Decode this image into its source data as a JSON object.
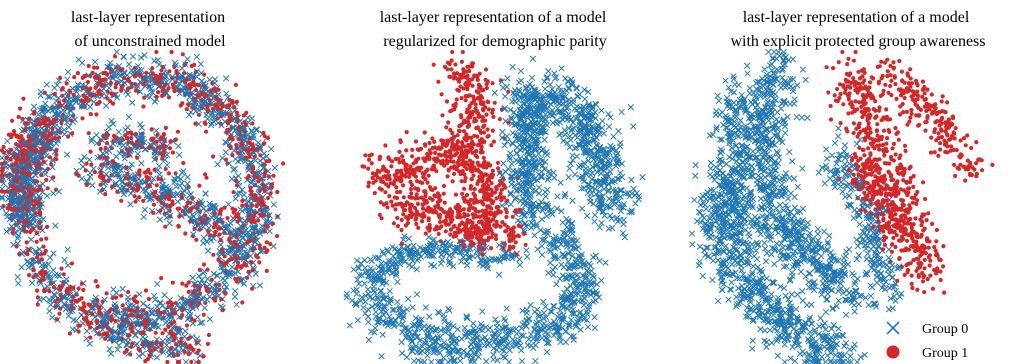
{
  "chart_data": [
    {
      "type": "scatter",
      "title": "last-layer representation\nof unconstrained model",
      "xlabel": "",
      "ylabel": "",
      "grid": false,
      "axes_visible": false,
      "description": "mixed ring / spiral; both groups interleaved",
      "series": [
        {
          "name": "Group 0",
          "marker": "x",
          "color": "#1f77b4",
          "approx_points": 1800
        },
        {
          "name": "Group 1",
          "marker": "o",
          "color": "#d62728",
          "approx_points": 1400
        }
      ]
    },
    {
      "type": "scatter",
      "title": "last-layer representation of a model\nregularized for demographic parity",
      "xlabel": "",
      "ylabel": "",
      "grid": false,
      "axes_visible": false,
      "description": "group 1 in left lobes, group 0 in outer arcs",
      "series": [
        {
          "name": "Group 0",
          "marker": "x",
          "color": "#1f77b4",
          "approx_points": 1800
        },
        {
          "name": "Group 1",
          "marker": "o",
          "color": "#d62728",
          "approx_points": 1000
        }
      ]
    },
    {
      "type": "scatter",
      "title": "last-layer representation of a model\nwith explicit protected group awareness",
      "xlabel": "",
      "ylabel": "",
      "grid": false,
      "axes_visible": false,
      "description": "three diagonal bands; groups separated",
      "legend_position": "bottom-right",
      "series": [
        {
          "name": "Group 0",
          "marker": "x",
          "color": "#1f77b4",
          "approx_points": 1800
        },
        {
          "name": "Group 1",
          "marker": "o",
          "color": "#d62728",
          "approx_points": 900
        }
      ]
    }
  ],
  "legend": {
    "items": [
      {
        "label": "Group 0",
        "marker": "x",
        "color": "#1f77b4"
      },
      {
        "label": "Group 1",
        "marker": "o",
        "color": "#d62728"
      }
    ]
  }
}
